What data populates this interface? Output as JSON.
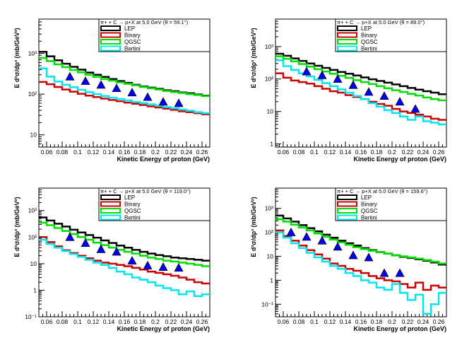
{
  "chart_data": [
    {
      "type": "line",
      "title": "π+ + C → p+X at 5.0 GeV (θ = 59.1°)",
      "xlabel": "Kinetic Energy of proton (GeV)",
      "ylabel": "E d³σ/dp³ (mb/GeV²)",
      "yscale": "log",
      "xlim": [
        0.05,
        0.27
      ],
      "ylim": [
        5,
        7000
      ],
      "xtick_values": [
        0.06,
        0.08,
        0.1,
        0.12,
        0.14,
        0.16,
        0.18,
        0.2,
        0.22,
        0.24,
        0.26
      ],
      "xtick_labels": [
        "0.06",
        "0.08",
        "0.1",
        "0.12",
        "0.14",
        "0.16",
        "0.18",
        "0.2",
        "0.22",
        "0.24",
        "0.26"
      ],
      "ytick_values": [
        10,
        100,
        1000
      ],
      "ytick_labels": [
        "10",
        "10²",
        "10³"
      ],
      "legend_position": "top-right",
      "bin_edges": [
        0.05,
        0.06,
        0.07,
        0.08,
        0.09,
        0.1,
        0.11,
        0.12,
        0.13,
        0.14,
        0.15,
        0.16,
        0.17,
        0.18,
        0.19,
        0.2,
        0.21,
        0.22,
        0.23,
        0.24,
        0.25,
        0.26,
        0.27
      ],
      "series": [
        {
          "name": "LEP",
          "color": "#000000",
          "values": [
            1100,
            850,
            680,
            560,
            470,
            400,
            340,
            300,
            265,
            235,
            210,
            190,
            170,
            155,
            145,
            135,
            125,
            118,
            110,
            105,
            98,
            92
          ]
        },
        {
          "name": "Binary",
          "color": "#cc0000",
          "values": [
            200,
            175,
            150,
            130,
            115,
            102,
            92,
            85,
            78,
            72,
            67,
            62,
            58,
            54,
            50,
            47,
            44,
            41,
            38,
            36,
            34,
            32
          ]
        },
        {
          "name": "QGSC",
          "color": "#00dd00",
          "values": [
            780,
            650,
            540,
            460,
            395,
            345,
            300,
            265,
            235,
            215,
            195,
            180,
            165,
            150,
            140,
            130,
            120,
            113,
            107,
            100,
            95,
            90
          ]
        },
        {
          "name": "Bertini",
          "color": "#00e5ee",
          "values": [
            430,
            270,
            205,
            170,
            148,
            128,
            112,
            100,
            90,
            82,
            76,
            70,
            64,
            60,
            56,
            52,
            48,
            45,
            42,
            39,
            36,
            34
          ]
        }
      ],
      "data_points": {
        "x": [
          0.09,
          0.11,
          0.13,
          0.15,
          0.17,
          0.19,
          0.21,
          0.23
        ],
        "y": [
          270,
          210,
          170,
          140,
          110,
          85,
          65,
          60
        ],
        "color": "#0000ee"
      }
    },
    {
      "type": "line",
      "title": "π+ + C → p+X at 5.0 GeV (θ = 89.0°)",
      "xlabel": "Kinetic Energy of proton (GeV)",
      "ylabel": "E d³σ/dp³ (mb/GeV²)",
      "yscale": "log",
      "xlim": [
        0.05,
        0.27
      ],
      "ylim": [
        0.8,
        7000
      ],
      "xtick_values": [
        0.06,
        0.08,
        0.1,
        0.12,
        0.14,
        0.16,
        0.18,
        0.2,
        0.22,
        0.24,
        0.26
      ],
      "xtick_labels": [
        "0.06",
        "0.08",
        "0.1",
        "0.12",
        "0.14",
        "0.16",
        "0.18",
        "0.2",
        "0.22",
        "0.24",
        "0.26"
      ],
      "ytick_values": [
        1,
        10,
        100,
        1000
      ],
      "ytick_labels": [
        "1",
        "10",
        "10²",
        "10³"
      ],
      "legend_position": "top-right",
      "bin_edges": [
        0.05,
        0.06,
        0.07,
        0.08,
        0.09,
        0.1,
        0.11,
        0.12,
        0.13,
        0.14,
        0.15,
        0.16,
        0.17,
        0.18,
        0.19,
        0.2,
        0.21,
        0.22,
        0.23,
        0.24,
        0.25,
        0.26,
        0.27
      ],
      "series": [
        {
          "name": "LEP",
          "color": "#000000",
          "values": [
            600,
            520,
            430,
            360,
            300,
            255,
            220,
            190,
            165,
            145,
            128,
            112,
            98,
            87,
            77,
            68,
            60,
            53,
            47,
            42,
            38,
            34
          ]
        },
        {
          "name": "Binary",
          "color": "#cc0000",
          "values": [
            150,
            110,
            90,
            80,
            72,
            60,
            50,
            42,
            38,
            32,
            28,
            24,
            20,
            17,
            15,
            12,
            10,
            9,
            8,
            7,
            6,
            5.5
          ]
        },
        {
          "name": "QGSC",
          "color": "#00dd00",
          "values": [
            500,
            420,
            350,
            290,
            240,
            200,
            170,
            145,
            125,
            108,
            92,
            80,
            70,
            60,
            52,
            45,
            40,
            35,
            31,
            27,
            24,
            22
          ]
        },
        {
          "name": "Bertini",
          "color": "#00e5ee",
          "values": [
            380,
            250,
            190,
            150,
            120,
            95,
            75,
            60,
            48,
            38,
            30,
            24,
            18,
            14,
            11,
            9,
            7,
            5.5,
            7,
            5,
            4.5,
            4
          ]
        }
      ],
      "data_points": {
        "x": [
          0.09,
          0.11,
          0.13,
          0.15,
          0.17,
          0.19,
          0.21,
          0.23
        ],
        "y": [
          170,
          130,
          100,
          65,
          40,
          30,
          20,
          12
        ],
        "color": "#0000ee"
      }
    },
    {
      "type": "line",
      "title": "π+ + C → p+X at 5.0 GeV (θ = 119.0°)",
      "xlabel": "Kinetic Energy of proton (GeV)",
      "ylabel": "E d³σ/dp³ (mb/GeV²)",
      "yscale": "log",
      "xlim": [
        0.05,
        0.27
      ],
      "ylim": [
        0.1,
        7000
      ],
      "xtick_values": [
        0.06,
        0.08,
        0.1,
        0.12,
        0.14,
        0.16,
        0.18,
        0.2,
        0.22,
        0.24,
        0.26
      ],
      "xtick_labels": [
        "0.06",
        "0.08",
        "0.1",
        "0.12",
        "0.14",
        "0.16",
        "0.18",
        "0.2",
        "0.22",
        "0.24",
        "0.26"
      ],
      "ytick_values": [
        0.1,
        1,
        10,
        100,
        1000
      ],
      "ytick_labels": [
        "10⁻¹",
        "1",
        "10",
        "10²",
        "10³"
      ],
      "legend_position": "top-right",
      "bin_edges": [
        0.05,
        0.06,
        0.07,
        0.08,
        0.09,
        0.1,
        0.11,
        0.12,
        0.13,
        0.14,
        0.15,
        0.16,
        0.17,
        0.18,
        0.19,
        0.2,
        0.21,
        0.22,
        0.23,
        0.24,
        0.25,
        0.26,
        0.27
      ],
      "series": [
        {
          "name": "LEP",
          "color": "#000000",
          "values": [
            550,
            420,
            320,
            250,
            190,
            150,
            120,
            95,
            75,
            60,
            48,
            40,
            33,
            28,
            24,
            21,
            19,
            17,
            16,
            15,
            14,
            13
          ]
        },
        {
          "name": "Binary",
          "color": "#cc0000",
          "values": [
            100,
            65,
            45,
            32,
            25,
            20,
            16,
            13,
            11,
            10,
            9,
            8,
            7,
            6,
            5,
            4.5,
            4,
            3.5,
            3,
            2.5,
            2,
            1.8
          ]
        },
        {
          "name": "QGSC",
          "color": "#00dd00",
          "values": [
            350,
            280,
            220,
            170,
            130,
            100,
            80,
            62,
            50,
            40,
            33,
            28,
            24,
            20,
            17,
            15,
            13,
            12,
            11,
            10,
            9,
            8
          ]
        },
        {
          "name": "Bertini",
          "color": "#00e5ee",
          "values": [
            80,
            55,
            40,
            30,
            23,
            18,
            14,
            11,
            9,
            7,
            5,
            4,
            3,
            2.5,
            2,
            1.5,
            1.2,
            1,
            0.7,
            0.9,
            0.6,
            0.7
          ]
        }
      ],
      "data_points": {
        "x": [
          0.09,
          0.11,
          0.13,
          0.15,
          0.17,
          0.19,
          0.21,
          0.23
        ],
        "y": [
          100,
          60,
          35,
          28,
          13,
          8.5,
          7.5,
          7
        ],
        "color": "#0000ee"
      }
    },
    {
      "type": "line",
      "title": "π+ + C → p+X at 5.0 GeV (θ = 159.6°)",
      "xlabel": "Kinetic Energy of proton (GeV)",
      "ylabel": "E d³σ/dp³ (mb/GeV²)",
      "yscale": "log",
      "xlim": [
        0.05,
        0.27
      ],
      "ylim": [
        0.03,
        7000
      ],
      "xtick_values": [
        0.06,
        0.08,
        0.1,
        0.12,
        0.14,
        0.16,
        0.18,
        0.2,
        0.22,
        0.24,
        0.26
      ],
      "xtick_labels": [
        "0.06",
        "0.08",
        "0.1",
        "0.12",
        "0.14",
        "0.16",
        "0.18",
        "0.2",
        "0.22",
        "0.24",
        "0.26"
      ],
      "ytick_values": [
        0.1,
        1,
        10,
        100,
        1000
      ],
      "ytick_labels": [
        "10⁻¹",
        "1",
        "10",
        "10²",
        "10³"
      ],
      "legend_position": "top-right",
      "bin_edges": [
        0.05,
        0.06,
        0.07,
        0.08,
        0.09,
        0.1,
        0.11,
        0.12,
        0.13,
        0.14,
        0.15,
        0.16,
        0.17,
        0.18,
        0.19,
        0.2,
        0.21,
        0.22,
        0.23,
        0.24,
        0.25,
        0.26,
        0.27
      ],
      "series": [
        {
          "name": "LEP",
          "color": "#000000",
          "values": [
            500,
            380,
            280,
            200,
            150,
            110,
            80,
            60,
            45,
            35,
            28,
            22,
            18,
            15,
            13,
            11,
            9.5,
            8.5,
            7.5,
            6.5,
            5.5,
            4.5
          ]
        },
        {
          "name": "Binary",
          "color": "#cc0000",
          "values": [
            120,
            70,
            45,
            28,
            18,
            12,
            8,
            5,
            4,
            3,
            2.5,
            2,
            1.5,
            1.2,
            1,
            0.9,
            0.7,
            0.5,
            0.8,
            0.4,
            0.6,
            0.5
          ]
        },
        {
          "name": "QGSC",
          "color": "#00dd00",
          "values": [
            350,
            280,
            210,
            160,
            120,
            90,
            65,
            50,
            38,
            30,
            24,
            20,
            17,
            15,
            13,
            11,
            10,
            9,
            8,
            7,
            6,
            5
          ]
        },
        {
          "name": "Bertini",
          "color": "#00e5ee",
          "values": [
            100,
            60,
            35,
            22,
            14,
            9,
            6,
            4,
            3,
            2,
            1.5,
            1,
            0.8,
            0.5,
            0.4,
            0.7,
            0.3,
            0.15,
            0.25,
            0.04,
            0.1,
            0.3
          ]
        }
      ],
      "data_points": {
        "x": [
          0.07,
          0.09,
          0.11,
          0.13,
          0.15,
          0.17,
          0.19,
          0.21
        ],
        "y": [
          100,
          65,
          45,
          25,
          11,
          9,
          2,
          2
        ],
        "color": "#0000ee"
      }
    }
  ]
}
